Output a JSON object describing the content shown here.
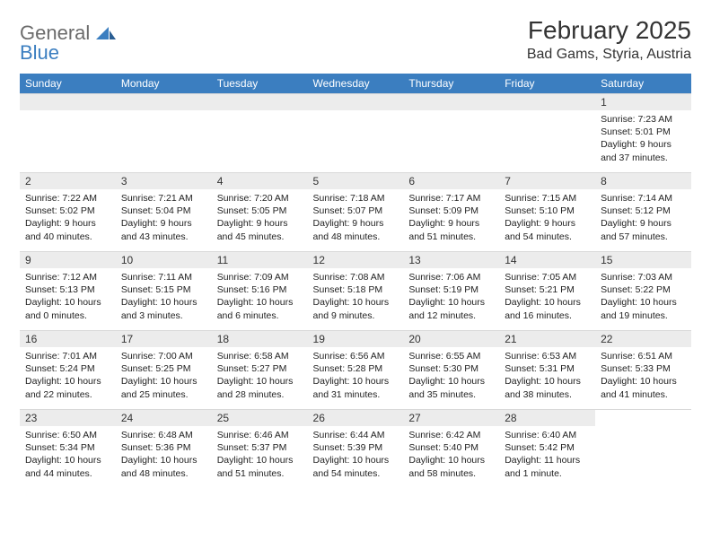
{
  "logo": {
    "word1": "General",
    "word2": "Blue"
  },
  "title": "February 2025",
  "location": "Bad Gams, Styria, Austria",
  "colors": {
    "header_bg": "#3b7ec0",
    "header_text": "#ffffff",
    "daterow_bg": "#ececec",
    "border": "#d9d9d9",
    "logo_gray": "#6b6b6b",
    "logo_blue": "#3b7ec0",
    "text": "#222222"
  },
  "day_headers": [
    "Sunday",
    "Monday",
    "Tuesday",
    "Wednesday",
    "Thursday",
    "Friday",
    "Saturday"
  ],
  "weeks": [
    [
      null,
      null,
      null,
      null,
      null,
      null,
      {
        "d": "1",
        "sr": "Sunrise: 7:23 AM",
        "ss": "Sunset: 5:01 PM",
        "dl": "Daylight: 9 hours and 37 minutes."
      }
    ],
    [
      {
        "d": "2",
        "sr": "Sunrise: 7:22 AM",
        "ss": "Sunset: 5:02 PM",
        "dl": "Daylight: 9 hours and 40 minutes."
      },
      {
        "d": "3",
        "sr": "Sunrise: 7:21 AM",
        "ss": "Sunset: 5:04 PM",
        "dl": "Daylight: 9 hours and 43 minutes."
      },
      {
        "d": "4",
        "sr": "Sunrise: 7:20 AM",
        "ss": "Sunset: 5:05 PM",
        "dl": "Daylight: 9 hours and 45 minutes."
      },
      {
        "d": "5",
        "sr": "Sunrise: 7:18 AM",
        "ss": "Sunset: 5:07 PM",
        "dl": "Daylight: 9 hours and 48 minutes."
      },
      {
        "d": "6",
        "sr": "Sunrise: 7:17 AM",
        "ss": "Sunset: 5:09 PM",
        "dl": "Daylight: 9 hours and 51 minutes."
      },
      {
        "d": "7",
        "sr": "Sunrise: 7:15 AM",
        "ss": "Sunset: 5:10 PM",
        "dl": "Daylight: 9 hours and 54 minutes."
      },
      {
        "d": "8",
        "sr": "Sunrise: 7:14 AM",
        "ss": "Sunset: 5:12 PM",
        "dl": "Daylight: 9 hours and 57 minutes."
      }
    ],
    [
      {
        "d": "9",
        "sr": "Sunrise: 7:12 AM",
        "ss": "Sunset: 5:13 PM",
        "dl": "Daylight: 10 hours and 0 minutes."
      },
      {
        "d": "10",
        "sr": "Sunrise: 7:11 AM",
        "ss": "Sunset: 5:15 PM",
        "dl": "Daylight: 10 hours and 3 minutes."
      },
      {
        "d": "11",
        "sr": "Sunrise: 7:09 AM",
        "ss": "Sunset: 5:16 PM",
        "dl": "Daylight: 10 hours and 6 minutes."
      },
      {
        "d": "12",
        "sr": "Sunrise: 7:08 AM",
        "ss": "Sunset: 5:18 PM",
        "dl": "Daylight: 10 hours and 9 minutes."
      },
      {
        "d": "13",
        "sr": "Sunrise: 7:06 AM",
        "ss": "Sunset: 5:19 PM",
        "dl": "Daylight: 10 hours and 12 minutes."
      },
      {
        "d": "14",
        "sr": "Sunrise: 7:05 AM",
        "ss": "Sunset: 5:21 PM",
        "dl": "Daylight: 10 hours and 16 minutes."
      },
      {
        "d": "15",
        "sr": "Sunrise: 7:03 AM",
        "ss": "Sunset: 5:22 PM",
        "dl": "Daylight: 10 hours and 19 minutes."
      }
    ],
    [
      {
        "d": "16",
        "sr": "Sunrise: 7:01 AM",
        "ss": "Sunset: 5:24 PM",
        "dl": "Daylight: 10 hours and 22 minutes."
      },
      {
        "d": "17",
        "sr": "Sunrise: 7:00 AM",
        "ss": "Sunset: 5:25 PM",
        "dl": "Daylight: 10 hours and 25 minutes."
      },
      {
        "d": "18",
        "sr": "Sunrise: 6:58 AM",
        "ss": "Sunset: 5:27 PM",
        "dl": "Daylight: 10 hours and 28 minutes."
      },
      {
        "d": "19",
        "sr": "Sunrise: 6:56 AM",
        "ss": "Sunset: 5:28 PM",
        "dl": "Daylight: 10 hours and 31 minutes."
      },
      {
        "d": "20",
        "sr": "Sunrise: 6:55 AM",
        "ss": "Sunset: 5:30 PM",
        "dl": "Daylight: 10 hours and 35 minutes."
      },
      {
        "d": "21",
        "sr": "Sunrise: 6:53 AM",
        "ss": "Sunset: 5:31 PM",
        "dl": "Daylight: 10 hours and 38 minutes."
      },
      {
        "d": "22",
        "sr": "Sunrise: 6:51 AM",
        "ss": "Sunset: 5:33 PM",
        "dl": "Daylight: 10 hours and 41 minutes."
      }
    ],
    [
      {
        "d": "23",
        "sr": "Sunrise: 6:50 AM",
        "ss": "Sunset: 5:34 PM",
        "dl": "Daylight: 10 hours and 44 minutes."
      },
      {
        "d": "24",
        "sr": "Sunrise: 6:48 AM",
        "ss": "Sunset: 5:36 PM",
        "dl": "Daylight: 10 hours and 48 minutes."
      },
      {
        "d": "25",
        "sr": "Sunrise: 6:46 AM",
        "ss": "Sunset: 5:37 PM",
        "dl": "Daylight: 10 hours and 51 minutes."
      },
      {
        "d": "26",
        "sr": "Sunrise: 6:44 AM",
        "ss": "Sunset: 5:39 PM",
        "dl": "Daylight: 10 hours and 54 minutes."
      },
      {
        "d": "27",
        "sr": "Sunrise: 6:42 AM",
        "ss": "Sunset: 5:40 PM",
        "dl": "Daylight: 10 hours and 58 minutes."
      },
      {
        "d": "28",
        "sr": "Sunrise: 6:40 AM",
        "ss": "Sunset: 5:42 PM",
        "dl": "Daylight: 11 hours and 1 minute."
      },
      null
    ]
  ]
}
